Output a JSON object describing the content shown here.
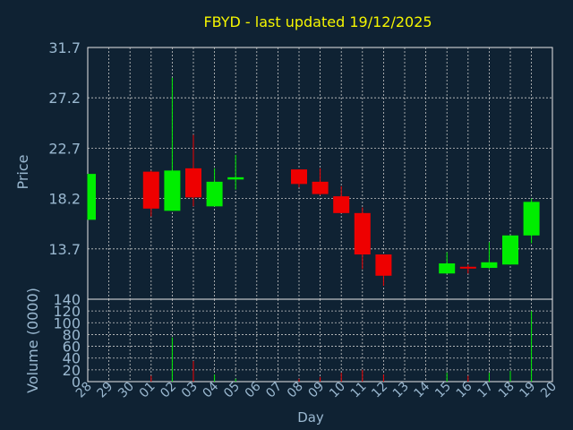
{
  "colors": {
    "background": "#0f2233",
    "plot_border": "#e8e8e8",
    "grid": "#c8c8c8",
    "title": "#f5f500",
    "axis_text": "#9ab8d0",
    "up": "#00ee00",
    "down": "#ee0000"
  },
  "chart_data": {
    "type": "candlestick",
    "title": "FBYD - last updated 19/12/2025",
    "xlabel": "Day",
    "price_panel": {
      "ylabel": "Price",
      "ylim": [
        9.2,
        31.7
      ],
      "yticks": [
        "31.7",
        "27.2",
        "22.7",
        "18.2",
        "13.7"
      ],
      "ytick_values": [
        31.7,
        27.2,
        22.7,
        18.2,
        13.7
      ],
      "grid": true
    },
    "volume_panel": {
      "ylabel": "Volume (0000)",
      "ylim": [
        0,
        140
      ],
      "yticks": [
        "140",
        "120",
        "100",
        "80",
        "60",
        "40",
        "20",
        "0"
      ],
      "ytick_values": [
        140,
        120,
        100,
        80,
        60,
        40,
        20,
        0
      ],
      "grid": true
    },
    "categories": [
      "28",
      "29",
      "30",
      "01",
      "02",
      "03",
      "04",
      "05",
      "06",
      "07",
      "08",
      "09",
      "10",
      "11",
      "12",
      "13",
      "14",
      "15",
      "16",
      "17",
      "18",
      "19",
      "20"
    ],
    "candles": [
      {
        "x": "28",
        "open": 16.3,
        "close": 20.4,
        "high": 20.4,
        "low": 16.3,
        "volume": 0
      },
      {
        "x": "01",
        "open": 20.6,
        "close": 17.3,
        "high": 20.7,
        "low": 16.6,
        "volume": 10
      },
      {
        "x": "02",
        "open": 17.1,
        "close": 20.7,
        "high": 29.0,
        "low": 17.1,
        "volume": 75
      },
      {
        "x": "03",
        "open": 20.9,
        "close": 18.3,
        "high": 23.9,
        "low": 17.5,
        "volume": 35
      },
      {
        "x": "04",
        "open": 17.5,
        "close": 19.7,
        "high": 20.9,
        "low": 17.5,
        "volume": 12
      },
      {
        "x": "05",
        "open": 19.9,
        "close": 20.1,
        "high": 22.1,
        "low": 19.0,
        "volume": 5
      },
      {
        "x": "08",
        "open": 20.8,
        "close": 19.5,
        "high": 20.8,
        "low": 19.2,
        "volume": 5
      },
      {
        "x": "09",
        "open": 19.7,
        "close": 18.6,
        "high": 20.9,
        "low": 18.5,
        "volume": 8
      },
      {
        "x": "10",
        "open": 18.4,
        "close": 16.9,
        "high": 19.3,
        "low": 16.9,
        "volume": 15
      },
      {
        "x": "11",
        "open": 16.9,
        "close": 13.2,
        "high": 17.4,
        "low": 11.9,
        "volume": 20
      },
      {
        "x": "12",
        "open": 13.2,
        "close": 11.3,
        "high": 13.2,
        "low": 10.4,
        "volume": 12
      },
      {
        "x": "15",
        "open": 11.5,
        "close": 12.4,
        "high": 13.4,
        "low": 11.5,
        "volume": 15
      },
      {
        "x": "16",
        "open": 12.1,
        "close": 12.0,
        "high": 12.3,
        "low": 11.5,
        "volume": 10
      },
      {
        "x": "17",
        "open": 12.0,
        "close": 12.5,
        "high": 14.3,
        "low": 11.9,
        "volume": 15
      },
      {
        "x": "18",
        "open": 12.3,
        "close": 14.9,
        "high": 14.9,
        "low": 12.3,
        "volume": 18
      },
      {
        "x": "19",
        "open": 14.9,
        "close": 17.9,
        "high": 18.2,
        "low": 14.2,
        "volume": 120
      }
    ]
  }
}
